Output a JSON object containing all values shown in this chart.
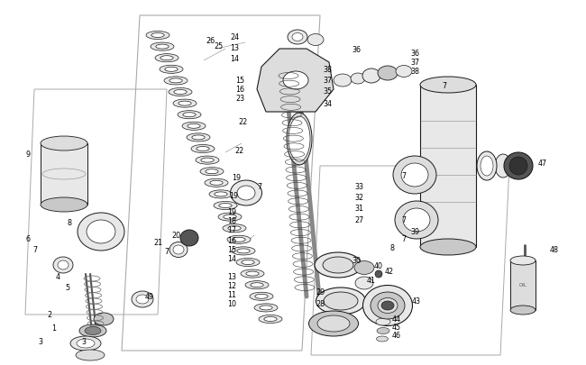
{
  "bg_color": "#ffffff",
  "line_color": "#1a1a1a",
  "label_color": "#000000",
  "fs": 5.8,
  "fig_w": 6.5,
  "fig_h": 4.06,
  "dpi": 100,
  "gray1": "#c8c8c8",
  "gray2": "#e8e8e8",
  "gray3": "#aaaaaa",
  "gray4": "#888888",
  "gray5": "#555555",
  "gray6": "#333333",
  "gray7": "#dddddd",
  "gray8": "#666666"
}
